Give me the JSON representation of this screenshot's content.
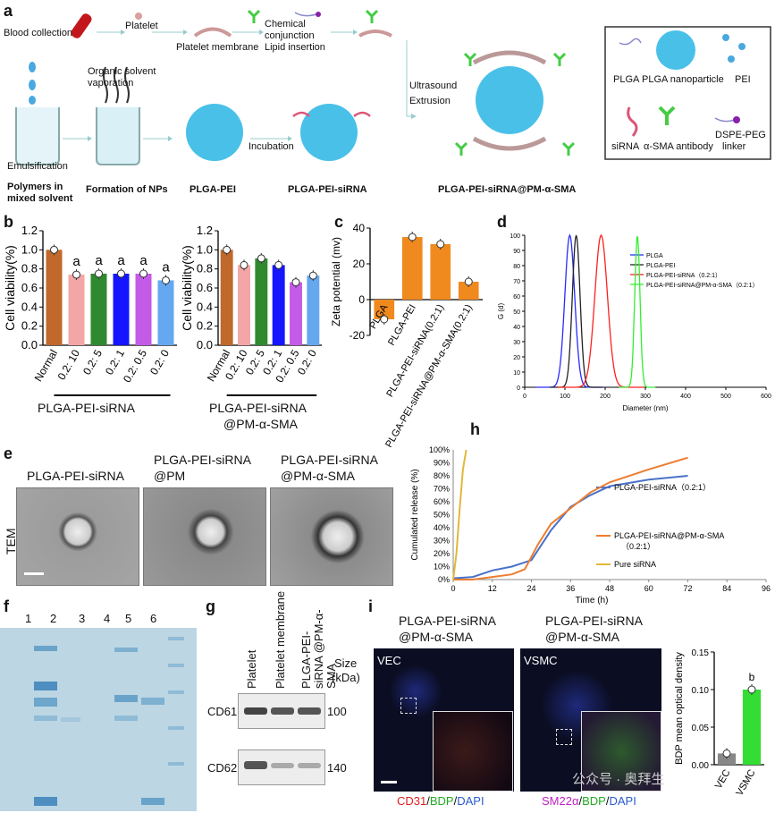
{
  "panel_letters": {
    "a": "a",
    "b": "b",
    "c": "c",
    "d": "d",
    "e": "e",
    "f": "f",
    "g": "g",
    "h": "h",
    "i": "i"
  },
  "panel_a": {
    "blood_collection": "Blood collection",
    "platelet": "Platelet",
    "platelet_membrane": "Platelet membrane",
    "chemical": "Chemical",
    "conjunction": "conjunction",
    "lipid_insertion": "Lipid insertion",
    "organic1": "Organic solvent",
    "organic2": "vaporation",
    "emulsification": "Emulsification",
    "incubation": "Incubation",
    "ultrasound": "Ultrasound",
    "extrusion": "Extrusion",
    "polymers1": "Polymers in",
    "polymers2": "mixed solvent",
    "formation": "Formation of NPs",
    "plga_pei": "PLGA-PEI",
    "plga_pei_sirna": "PLGA-PEI-siRNA",
    "final": "PLGA-PEI-siRNA@PM-α-SMA",
    "legend": {
      "plga": "PLGA",
      "plga_np": "PLGA nanoparticle",
      "pei": "PEI",
      "sirna": "siRNA",
      "antibody": "α-SMA antibody",
      "dspe1": "DSPE-PEG",
      "dspe2": "linker"
    }
  },
  "chart_data": [
    {
      "id": "b_left",
      "type": "bar",
      "ylabel": "Cell viability(%)",
      "ylim": [
        0,
        1.2
      ],
      "yticks": [
        "0.0",
        "0.2",
        "0.4",
        "0.6",
        "0.8",
        "1.0",
        "1.2"
      ],
      "categories": [
        "Normal",
        "0.2: 10",
        "0.2: 5",
        "0.2: 1",
        "0.2: 0.5",
        "0.2: 0"
      ],
      "values": [
        1.0,
        0.74,
        0.75,
        0.75,
        0.75,
        0.68
      ],
      "colors": [
        "#c0692b",
        "#f4a6a6",
        "#2f8a2f",
        "#1515ff",
        "#c45be8",
        "#66a8f0"
      ],
      "sig": [
        "",
        "a",
        "a",
        "a",
        "a",
        "a"
      ],
      "group_label": "PLGA-PEI-siRNA"
    },
    {
      "id": "b_right",
      "type": "bar",
      "ylabel": "Cell viability(%)",
      "ylim": [
        0,
        1.2
      ],
      "yticks": [
        "0.0",
        "0.2",
        "0.4",
        "0.6",
        "0.8",
        "1.0",
        "1.2"
      ],
      "categories": [
        "Normal",
        "0.2: 10",
        "0.2: 5",
        "0.2: 1",
        "0.2: 0.5",
        "0.2: 0"
      ],
      "values": [
        1.0,
        0.84,
        0.91,
        0.84,
        0.66,
        0.73
      ],
      "colors": [
        "#c0692b",
        "#f4a6a6",
        "#2f8a2f",
        "#1515ff",
        "#c45be8",
        "#66a8f0"
      ],
      "group_label_1": "PLGA-PEI-siRNA",
      "group_label_2": "@PM-α-SMA"
    },
    {
      "id": "c",
      "type": "bar",
      "ylabel": "Zeta potential (mv)",
      "ylim": [
        -20,
        40
      ],
      "yticks": [
        "-20",
        "0",
        "20",
        "40"
      ],
      "categories": [
        "PLGA",
        "PLGA-PEI",
        "PLGA-PEI-siRNA(0.2:1)",
        "PLGA-PEI-siRNA@PM-α-SMA(0.2:1)"
      ],
      "values": [
        -11,
        35,
        31,
        10
      ],
      "color": "#f08a1e"
    },
    {
      "id": "d",
      "type": "line",
      "xlabel": "Diameter (nm)",
      "ylabel": "G (d)",
      "xlim": [
        0,
        600
      ],
      "ylim": [
        0,
        100
      ],
      "xticks": [
        "0",
        "100",
        "200",
        "300",
        "400",
        "500",
        "600"
      ],
      "yticks": [
        "0",
        "10",
        "20",
        "30",
        "40",
        "50",
        "60",
        "70",
        "80",
        "90",
        "100"
      ],
      "series": [
        {
          "name": "PLGA",
          "color": "#2a2aff",
          "peak": 112,
          "width": 28
        },
        {
          "name": "PLGA-PEI",
          "color": "#222222",
          "peak": 128,
          "width": 22
        },
        {
          "name": "PLGA-PEI-siRNA（0.2:1）",
          "color": "#ff2020",
          "peak": 190,
          "width": 36
        },
        {
          "name": "PLGA-PEI-siRNA@PM-α-SMA（0.2:1）",
          "color": "#33ee33",
          "peak": 280,
          "width": 15
        }
      ]
    },
    {
      "id": "h",
      "type": "line",
      "xlabel": "Time (h)",
      "ylabel": "Cumulated release (%)",
      "xlim": [
        0,
        96
      ],
      "ylim": [
        0,
        100
      ],
      "xticks": [
        "0",
        "12",
        "24",
        "36",
        "48",
        "60",
        "72",
        "84",
        "96"
      ],
      "yticks": [
        "0%",
        "10%",
        "20%",
        "30%",
        "40%",
        "50%",
        "60%",
        "70%",
        "80%",
        "90%",
        "100%"
      ],
      "series": [
        {
          "name": "PLGA-PEI-siRNA（0.2:1）",
          "color": "#4a72c8",
          "x": [
            0,
            6,
            12,
            18,
            24,
            30,
            36,
            42,
            48,
            60,
            72
          ],
          "y": [
            1,
            2,
            7,
            10,
            15,
            38,
            56,
            65,
            72,
            77,
            80
          ]
        },
        {
          "name": "PLGA-PEI-siRNA@PM-α-SMA",
          "name2": "（0.2:1）",
          "color": "#ed7d31",
          "x": [
            0,
            6,
            12,
            18,
            22,
            26,
            30,
            36,
            42,
            48,
            60,
            72
          ],
          "y": [
            0,
            0,
            2,
            4,
            8,
            27,
            43,
            55,
            67,
            75,
            85,
            94
          ]
        },
        {
          "name": "Pure siRNA",
          "color": "#e2b83a",
          "x": [
            0,
            1,
            2,
            3,
            4
          ],
          "y": [
            0,
            20,
            55,
            85,
            100
          ]
        }
      ]
    },
    {
      "id": "i_bar",
      "type": "bar",
      "ylabel": "BDP mean optical density",
      "ylim": [
        0,
        0.15
      ],
      "yticks": [
        "0.00",
        "0.05",
        "0.10",
        "0.15"
      ],
      "categories": [
        "VEC",
        "VSMC"
      ],
      "values": [
        0.015,
        0.1
      ],
      "colors": [
        "#888888",
        "#33dd33"
      ],
      "sig": [
        "",
        "b"
      ]
    }
  ],
  "panel_e": {
    "t1": "PLGA-PEI-siRNA",
    "t2a": "PLGA-PEI-siRNA",
    "t2b": "@PM",
    "t3a": "PLGA-PEI-siRNA",
    "t3b": "@PM-α-SMA",
    "side": "TEM"
  },
  "panel_f": {
    "lanes": [
      "1",
      "2",
      "3",
      "4",
      "5",
      "6"
    ]
  },
  "panel_g": {
    "cols": [
      "Platelet",
      "Platelet membrane",
      "PLGA-PEI-siRNA @PM-α-SMA"
    ],
    "size1": "Size",
    "size2": "(kDa)",
    "row1": "CD61",
    "row2": "CD62P",
    "kda1": "100",
    "kda2": "140"
  },
  "panel_i": {
    "t1a": "PLGA-PEI-siRNA",
    "t1b": "@PM-α-SMA",
    "t2a": "PLGA-PEI-siRNA",
    "t2b": "@PM-α-SMA",
    "vec": "VEC",
    "vsmc": "VSMC",
    "cap1a": "CD31",
    "cap1b": "/",
    "cap1c": "BDP",
    "cap1d": "/",
    "cap1e": "DAPI",
    "cap2a": "SM22α",
    "cap2b": "/",
    "cap2c": "BDP",
    "cap2d": "/",
    "cap2e": "DAPI",
    "watermark": "公众号 · 奥拜生"
  }
}
